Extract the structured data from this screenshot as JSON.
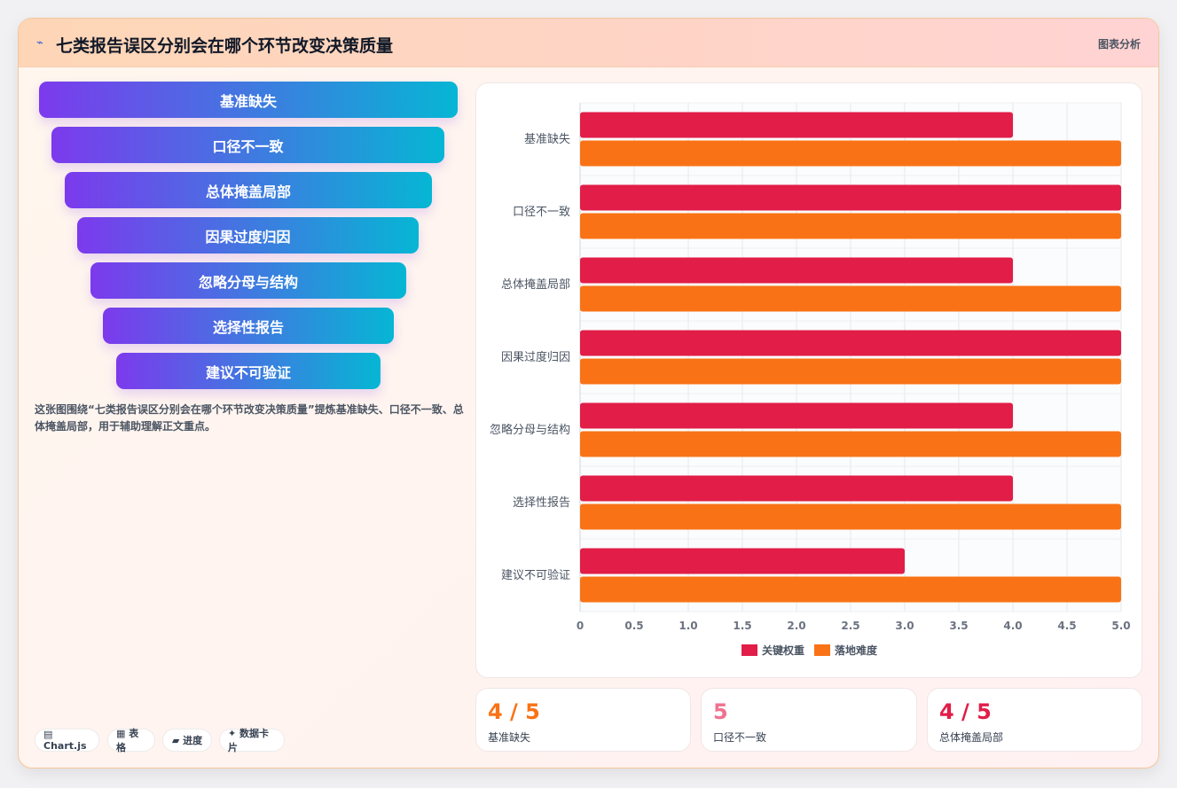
{
  "header": {
    "title": "七类报告误区分别会在哪个环节改变决策质量",
    "tag": "图表分析",
    "icon": "sparkle-icon"
  },
  "funnel": {
    "items": [
      "基准缺失",
      "口径不一致",
      "总体掩盖局部",
      "因果过度归因",
      "忽略分母与结构",
      "选择性报告",
      "建议不可验证"
    ]
  },
  "description": "这张图围绕“七类报告误区分别会在哪个环节改变决策质量”提炼基准缺失、口径不一致、总体掩盖局部，用于辅助理解正文重点。",
  "chips": [
    "▤ Chart.js",
    "▦ 表格",
    "▰ 进度",
    "✦ 数据卡片"
  ],
  "chart_data": {
    "type": "bar",
    "orientation": "horizontal",
    "categories": [
      "基准缺失",
      "口径不一致",
      "总体掩盖局部",
      "因果过度归因",
      "忽略分母与结构",
      "选择性报告",
      "建议不可验证"
    ],
    "series": [
      {
        "name": "关键权重",
        "color": "#e11d48",
        "values": [
          4,
          5,
          4,
          5,
          4,
          4,
          3
        ]
      },
      {
        "name": "落地难度",
        "color": "#f97316",
        "values": [
          5,
          5,
          5,
          5,
          5,
          5,
          5
        ]
      }
    ],
    "xlim": [
      0,
      5
    ],
    "xticks": [
      "0",
      "0.5",
      "1.0",
      "1.5",
      "2.0",
      "2.5",
      "3.0",
      "3.5",
      "4.0",
      "4.5",
      "5.0"
    ],
    "grid": true,
    "legend": "bottom"
  },
  "stats": [
    {
      "value": "4 / 5",
      "label": "基准缺失",
      "color": "#f97316"
    },
    {
      "value": "5",
      "label": "口径不一致",
      "color": "#f0728f"
    },
    {
      "value": "4 / 5",
      "label": "总体掩盖局部",
      "color": "#e11d48"
    }
  ]
}
